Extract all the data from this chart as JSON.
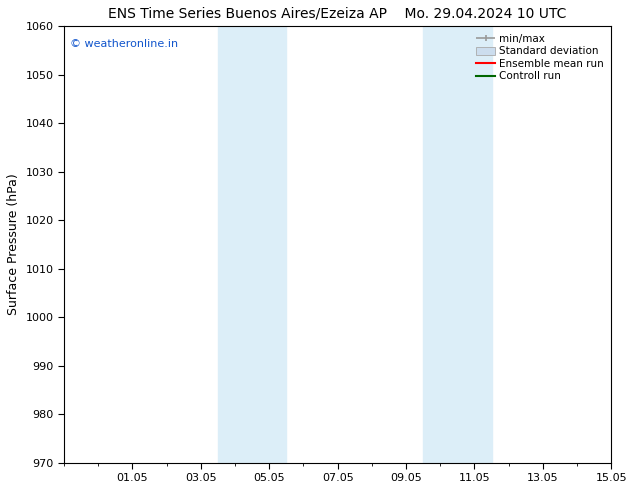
{
  "title_left": "ENS Time Series Buenos Aires/Ezeiza AP",
  "title_right": "Mo. 29.04.2024 10 UTC",
  "ylabel": "Surface Pressure (hPa)",
  "ylim": [
    970,
    1060
  ],
  "yticks": [
    970,
    980,
    990,
    1000,
    1010,
    1020,
    1030,
    1040,
    1050,
    1060
  ],
  "xlim": [
    0,
    16
  ],
  "xtick_labels": [
    "01.05",
    "03.05",
    "05.05",
    "07.05",
    "09.05",
    "11.05",
    "13.05",
    "15.05"
  ],
  "xtick_positions": [
    2,
    4,
    6,
    8,
    10,
    12,
    14,
    16
  ],
  "shaded_bands": [
    {
      "xmin": 4.5,
      "xmax": 6.5
    },
    {
      "xmin": 10.5,
      "xmax": 12.5
    }
  ],
  "shade_color": "#dceef8",
  "watermark": "© weatheronline.in",
  "watermark_color": "#1155cc",
  "legend_labels": [
    "min/max",
    "Standard deviation",
    "Ensemble mean run",
    "Controll run"
  ],
  "legend_colors": [
    "#999999",
    "#ccddee",
    "#ff0000",
    "#006600"
  ],
  "bg_color": "#ffffff",
  "title_fontsize": 10,
  "ylabel_fontsize": 9,
  "tick_fontsize": 8,
  "legend_fontsize": 7.5,
  "watermark_fontsize": 8
}
